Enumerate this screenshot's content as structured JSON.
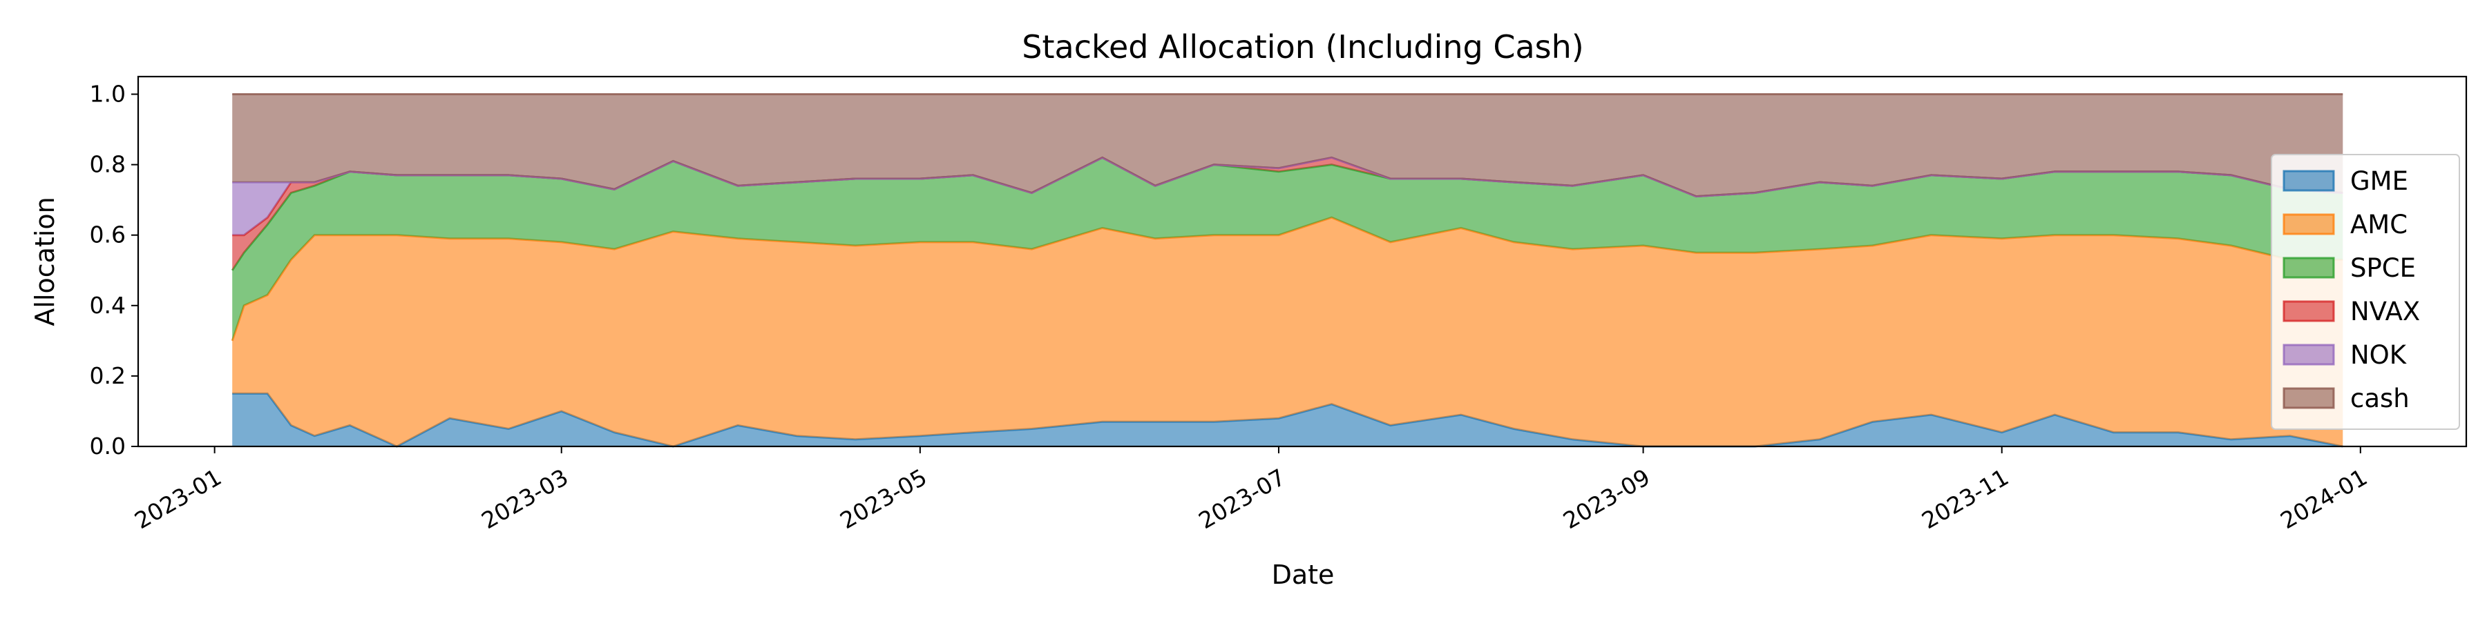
{
  "chart_data": {
    "type": "area",
    "stacked": true,
    "title": "Stacked Allocation (Including Cash)",
    "xlabel": "Date",
    "ylabel": "Allocation",
    "xlim": [
      "2022-12-19",
      "2024-01-19"
    ],
    "ylim": [
      0.0,
      1.05
    ],
    "x_ticks": [
      "2023-01",
      "2023-03",
      "2023-05",
      "2023-07",
      "2023-09",
      "2023-11",
      "2024-01"
    ],
    "y_ticks": [
      "0.0",
      "0.2",
      "0.4",
      "0.6",
      "0.8",
      "1.0"
    ],
    "grid": false,
    "legend_position": "right",
    "x": [
      "2023-01-04",
      "2023-01-06",
      "2023-01-10",
      "2023-01-14",
      "2023-01-18",
      "2023-01-24",
      "2023-02-01",
      "2023-02-10",
      "2023-02-20",
      "2023-03-01",
      "2023-03-10",
      "2023-03-20",
      "2023-03-31",
      "2023-04-10",
      "2023-04-20",
      "2023-05-01",
      "2023-05-10",
      "2023-05-20",
      "2023-06-01",
      "2023-06-10",
      "2023-06-20",
      "2023-07-01",
      "2023-07-10",
      "2023-07-20",
      "2023-08-01",
      "2023-08-10",
      "2023-08-20",
      "2023-09-01",
      "2023-09-10",
      "2023-09-20",
      "2023-10-01",
      "2023-10-10",
      "2023-10-20",
      "2023-11-01",
      "2023-11-10",
      "2023-11-20",
      "2023-12-01",
      "2023-12-10",
      "2023-12-20",
      "2023-12-29"
    ],
    "series": [
      {
        "name": "GME",
        "color": "#1f77b4",
        "values": [
          0.15,
          0.15,
          0.15,
          0.06,
          0.03,
          0.06,
          0.0,
          0.08,
          0.05,
          0.1,
          0.04,
          0.0,
          0.06,
          0.03,
          0.02,
          0.03,
          0.04,
          0.05,
          0.07,
          0.07,
          0.07,
          0.08,
          0.12,
          0.06,
          0.09,
          0.05,
          0.02,
          0.0,
          0.0,
          0.0,
          0.02,
          0.07,
          0.09,
          0.04,
          0.09,
          0.04,
          0.04,
          0.02,
          0.03,
          0.0
        ]
      },
      {
        "name": "AMC",
        "color": "#ff7f0e",
        "values": [
          0.15,
          0.25,
          0.28,
          0.47,
          0.57,
          0.54,
          0.6,
          0.51,
          0.54,
          0.48,
          0.52,
          0.61,
          0.53,
          0.55,
          0.55,
          0.55,
          0.54,
          0.51,
          0.55,
          0.52,
          0.53,
          0.52,
          0.53,
          0.52,
          0.53,
          0.53,
          0.54,
          0.57,
          0.55,
          0.55,
          0.54,
          0.5,
          0.51,
          0.55,
          0.51,
          0.56,
          0.55,
          0.55,
          0.5,
          0.53
        ]
      },
      {
        "name": "SPCE",
        "color": "#2ca02c",
        "values": [
          0.2,
          0.15,
          0.2,
          0.19,
          0.14,
          0.18,
          0.17,
          0.18,
          0.18,
          0.18,
          0.17,
          0.2,
          0.15,
          0.17,
          0.19,
          0.18,
          0.19,
          0.16,
          0.2,
          0.15,
          0.2,
          0.18,
          0.15,
          0.18,
          0.14,
          0.17,
          0.18,
          0.2,
          0.16,
          0.17,
          0.19,
          0.17,
          0.17,
          0.17,
          0.18,
          0.18,
          0.19,
          0.2,
          0.2,
          0.19
        ]
      },
      {
        "name": "NVAX",
        "color": "#d62728",
        "values": [
          0.1,
          0.05,
          0.02,
          0.03,
          0.01,
          0.0,
          0.0,
          0.0,
          0.0,
          0.0,
          0.0,
          0.0,
          0.0,
          0.0,
          0.0,
          0.0,
          0.0,
          0.0,
          0.0,
          0.0,
          0.0,
          0.01,
          0.02,
          0.0,
          0.0,
          0.0,
          0.0,
          0.0,
          0.0,
          0.0,
          0.0,
          0.0,
          0.0,
          0.0,
          0.0,
          0.0,
          0.0,
          0.0,
          0.0,
          0.0
        ]
      },
      {
        "name": "NOK",
        "color": "#9467bd",
        "values": [
          0.15,
          0.15,
          0.1,
          0.0,
          0.0,
          0.0,
          0.0,
          0.0,
          0.0,
          0.0,
          0.0,
          0.0,
          0.0,
          0.0,
          0.0,
          0.0,
          0.0,
          0.0,
          0.0,
          0.0,
          0.0,
          0.0,
          0.0,
          0.0,
          0.0,
          0.0,
          0.0,
          0.0,
          0.0,
          0.0,
          0.0,
          0.0,
          0.0,
          0.0,
          0.0,
          0.0,
          0.0,
          0.0,
          0.0,
          0.0
        ]
      },
      {
        "name": "cash",
        "color": "#8c564b",
        "values": [
          0.25,
          0.25,
          0.25,
          0.25,
          0.25,
          0.22,
          0.23,
          0.23,
          0.23,
          0.24,
          0.27,
          0.19,
          0.26,
          0.25,
          0.24,
          0.24,
          0.23,
          0.28,
          0.18,
          0.26,
          0.2,
          0.21,
          0.18,
          0.24,
          0.24,
          0.25,
          0.26,
          0.23,
          0.29,
          0.28,
          0.25,
          0.26,
          0.23,
          0.24,
          0.22,
          0.22,
          0.22,
          0.23,
          0.27,
          0.28
        ]
      }
    ]
  }
}
